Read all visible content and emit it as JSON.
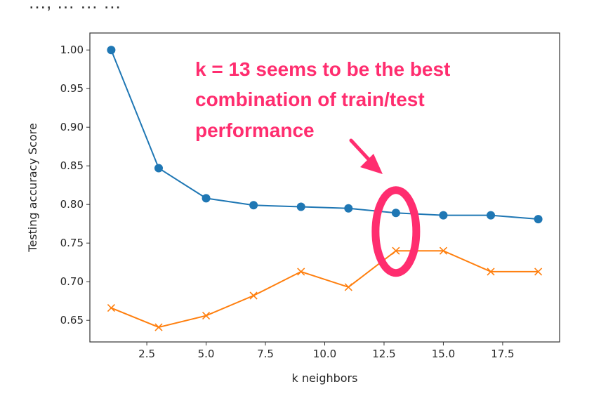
{
  "top_text": "…, … … …",
  "chart_data": {
    "type": "line",
    "xlabel": "k neighbors",
    "ylabel": "Testing accuracy Score",
    "xlim": [
      0.1,
      19.9
    ],
    "ylim": [
      0.622,
      1.022
    ],
    "xticks": [
      2.5,
      5.0,
      7.5,
      10.0,
      12.5,
      15.0,
      17.5
    ],
    "xtick_labels": [
      "2.5",
      "5.0",
      "7.5",
      "10.0",
      "12.5",
      "15.0",
      "17.5"
    ],
    "yticks": [
      0.65,
      0.7,
      0.75,
      0.8,
      0.85,
      0.9,
      0.95,
      1.0
    ],
    "ytick_labels": [
      "0.65",
      "0.70",
      "0.75",
      "0.80",
      "0.85",
      "0.90",
      "0.95",
      "1.00"
    ],
    "grid": false,
    "series": [
      {
        "marker": "circle",
        "color": "#1f77b4",
        "x": [
          1,
          3,
          5,
          7,
          9,
          11,
          13,
          15,
          17,
          19
        ],
        "values": [
          1.0,
          0.847,
          0.808,
          0.799,
          0.797,
          0.795,
          0.789,
          0.786,
          0.786,
          0.781
        ]
      },
      {
        "marker": "x",
        "color": "#ff7f0e",
        "x": [
          1,
          3,
          5,
          7,
          9,
          11,
          13,
          15,
          17,
          19
        ],
        "values": [
          0.666,
          0.641,
          0.656,
          0.682,
          0.713,
          0.693,
          0.74,
          0.74,
          0.713,
          0.713
        ]
      }
    ],
    "annotation": {
      "lines": [
        "k = 13 seems to be the best",
        "combination of train/test",
        "performance"
      ],
      "color": "#ff2d6f",
      "highlight_x": 13,
      "highlight_y": 0.765
    }
  }
}
